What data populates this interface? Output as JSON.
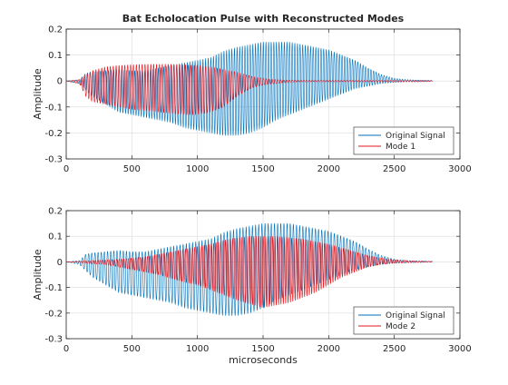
{
  "figure": {
    "title": "Bat Echolocation Pulse with Reconstructed Modes"
  },
  "colors": {
    "original": "#0072BD",
    "mode": "#E3161E",
    "grid": "#dcdcdc",
    "axis": "#262626"
  },
  "chart_data": [
    {
      "type": "line",
      "title": "Bat Echolocation Pulse with Reconstructed Modes",
      "xlabel": "",
      "ylabel": "Amplitude",
      "xlim": [
        0,
        3000
      ],
      "ylim": [
        -0.3,
        0.2
      ],
      "xticks": [
        "0",
        "500",
        "1000",
        "1500",
        "2000",
        "2500",
        "3000"
      ],
      "yticks": [
        "-0.3",
        "-0.2",
        "-0.1",
        "0",
        "0.1",
        "0.2"
      ],
      "grid": true,
      "legend": "bottom-right",
      "series": [
        {
          "name": "Original Signal",
          "x": [
            0,
            100,
            150,
            200,
            300,
            400,
            500,
            600,
            700,
            800,
            900,
            1000,
            1100,
            1200,
            1300,
            1400,
            1500,
            1600,
            1700,
            1800,
            1900,
            2000,
            2100,
            2200,
            2300,
            2400,
            2500,
            2600,
            2700,
            2790
          ],
          "upper": [
            0.0,
            0.005,
            0.03,
            0.035,
            0.04,
            0.045,
            0.04,
            0.04,
            0.05,
            0.06,
            0.07,
            0.08,
            0.09,
            0.115,
            0.13,
            0.14,
            0.15,
            0.15,
            0.15,
            0.14,
            0.13,
            0.12,
            0.1,
            0.08,
            0.05,
            0.025,
            0.01,
            0.005,
            0.003,
            0.002
          ],
          "lower": [
            0.0,
            -0.01,
            -0.035,
            -0.06,
            -0.09,
            -0.12,
            -0.13,
            -0.14,
            -0.15,
            -0.16,
            -0.18,
            -0.19,
            -0.2,
            -0.21,
            -0.21,
            -0.2,
            -0.18,
            -0.15,
            -0.13,
            -0.11,
            -0.09,
            -0.07,
            -0.05,
            -0.03,
            -0.02,
            -0.01,
            -0.005,
            -0.003,
            -0.002,
            -0.001
          ]
        },
        {
          "name": "Mode 1",
          "x": [
            0,
            100,
            150,
            200,
            300,
            400,
            500,
            600,
            700,
            800,
            900,
            1000,
            1100,
            1200,
            1300,
            1400,
            1500,
            1600,
            1700,
            1800,
            1900,
            2000,
            2100,
            2200,
            2300,
            2400,
            2500,
            2600,
            2700,
            2790
          ],
          "upper": [
            0.0,
            0.005,
            0.025,
            0.04,
            0.055,
            0.06,
            0.063,
            0.065,
            0.065,
            0.065,
            0.063,
            0.06,
            0.055,
            0.045,
            0.035,
            0.02,
            0.01,
            0.005,
            0.003,
            0.002,
            0.002,
            0.002,
            0.002,
            0.002,
            0.002,
            0.002,
            0.002,
            0.002,
            0.002,
            0.002
          ],
          "lower": [
            0.0,
            -0.01,
            -0.06,
            -0.08,
            -0.09,
            -0.1,
            -0.11,
            -0.115,
            -0.12,
            -0.125,
            -0.13,
            -0.13,
            -0.12,
            -0.1,
            -0.06,
            -0.03,
            -0.015,
            -0.01,
            -0.005,
            -0.003,
            -0.003,
            -0.003,
            -0.003,
            -0.003,
            -0.003,
            -0.003,
            -0.003,
            -0.003,
            -0.003,
            -0.002
          ]
        }
      ]
    },
    {
      "type": "line",
      "title": "",
      "xlabel": "microseconds",
      "ylabel": "Amplitude",
      "xlim": [
        0,
        3000
      ],
      "ylim": [
        -0.3,
        0.2
      ],
      "xticks": [
        "0",
        "500",
        "1000",
        "1500",
        "2000",
        "2500",
        "3000"
      ],
      "yticks": [
        "-0.3",
        "-0.2",
        "-0.1",
        "0",
        "0.1",
        "0.2"
      ],
      "grid": true,
      "legend": "bottom-right",
      "series": [
        {
          "name": "Original Signal",
          "x": [
            0,
            100,
            150,
            200,
            300,
            400,
            500,
            600,
            700,
            800,
            900,
            1000,
            1100,
            1200,
            1300,
            1400,
            1500,
            1600,
            1700,
            1800,
            1900,
            2000,
            2100,
            2200,
            2300,
            2400,
            2500,
            2600,
            2700,
            2790
          ],
          "upper": [
            0.0,
            0.005,
            0.03,
            0.035,
            0.04,
            0.045,
            0.04,
            0.04,
            0.05,
            0.06,
            0.07,
            0.08,
            0.09,
            0.115,
            0.13,
            0.14,
            0.15,
            0.15,
            0.15,
            0.14,
            0.13,
            0.12,
            0.1,
            0.08,
            0.05,
            0.025,
            0.01,
            0.005,
            0.003,
            0.002
          ],
          "lower": [
            0.0,
            -0.01,
            -0.035,
            -0.06,
            -0.09,
            -0.12,
            -0.13,
            -0.14,
            -0.15,
            -0.16,
            -0.18,
            -0.19,
            -0.2,
            -0.21,
            -0.21,
            -0.2,
            -0.18,
            -0.15,
            -0.13,
            -0.11,
            -0.09,
            -0.07,
            -0.05,
            -0.03,
            -0.02,
            -0.01,
            -0.005,
            -0.003,
            -0.002,
            -0.001
          ]
        },
        {
          "name": "Mode 2",
          "x": [
            0,
            100,
            150,
            200,
            300,
            400,
            500,
            600,
            700,
            800,
            900,
            1000,
            1100,
            1200,
            1300,
            1400,
            1500,
            1600,
            1700,
            1800,
            1900,
            2000,
            2100,
            2200,
            2300,
            2400,
            2500,
            2600,
            2700,
            2790
          ],
          "upper": [
            0.0,
            0.002,
            0.004,
            0.005,
            0.008,
            0.01,
            0.015,
            0.02,
            0.03,
            0.04,
            0.05,
            0.06,
            0.07,
            0.085,
            0.095,
            0.1,
            0.1,
            0.1,
            0.095,
            0.09,
            0.08,
            0.07,
            0.055,
            0.04,
            0.025,
            0.015,
            0.008,
            0.005,
            0.003,
            0.002
          ],
          "lower": [
            0.0,
            -0.002,
            -0.005,
            -0.008,
            -0.01,
            -0.02,
            -0.03,
            -0.04,
            -0.05,
            -0.065,
            -0.08,
            -0.09,
            -0.11,
            -0.13,
            -0.15,
            -0.165,
            -0.18,
            -0.17,
            -0.16,
            -0.14,
            -0.12,
            -0.09,
            -0.06,
            -0.04,
            -0.02,
            -0.01,
            -0.005,
            -0.003,
            -0.002,
            -0.001
          ]
        }
      ]
    }
  ]
}
